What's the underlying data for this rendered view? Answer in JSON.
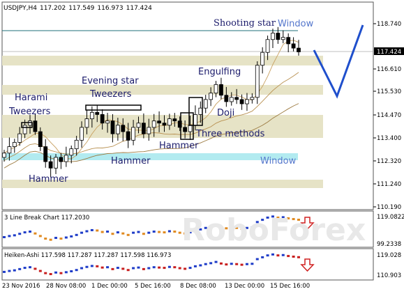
{
  "chart_data": [
    {
      "type": "candlestick",
      "symbol": "USDJPY,H4",
      "header_values": [
        "117.202",
        "117.549",
        "116.973",
        "117.424"
      ],
      "current_price": "117.424",
      "ylim": [
        110.19,
        119.5
      ],
      "y_ticks": [
        "118.740",
        "117.424",
        "116.610",
        "115.530",
        "114.470",
        "113.400",
        "112.320",
        "111.240",
        "110.190"
      ],
      "x_ticks": [
        "23 Nov 2016",
        "28 Nov 08:00",
        "1 Dec 00:00",
        "5 Dec 16:00",
        "8 Dec 08:00",
        "13 Dec 00:00",
        "15 Dec 16:00"
      ],
      "closes": [
        112.7,
        113.0,
        113.2,
        113.6,
        114.0,
        114.2,
        113.7,
        113.0,
        112.3,
        112.0,
        112.5,
        112.3,
        112.6,
        112.9,
        113.3,
        113.9,
        114.3,
        114.6,
        114.5,
        114.1,
        114.2,
        113.6,
        114.0,
        113.7,
        113.3,
        113.9,
        114.1,
        113.6,
        113.9,
        114.2,
        114.1,
        114.0,
        114.3,
        114.2,
        113.9,
        113.7,
        114.0,
        114.5,
        114.8,
        115.2,
        115.5,
        115.9,
        115.4,
        115.1,
        115.3,
        115.2,
        115.0,
        115.2,
        115.3,
        116.8,
        117.4,
        118.0,
        118.3,
        118.0,
        118.1,
        117.8,
        117.6,
        117.424
      ],
      "annotations": [
        "Shooting star",
        "Window",
        "Harami",
        "Tweezers",
        "Evening star",
        "Tweezers",
        "Engulfing",
        "Doji",
        "Three methods",
        "Hammer",
        "Hammer",
        "Hammer",
        "Window"
      ]
    },
    {
      "type": "line-break",
      "title": "3 Line Break Chart 117.2030",
      "y_ticks": [
        "119.0822",
        "99.2338"
      ],
      "values": [
        117.203
      ]
    },
    {
      "type": "heikin-ashi",
      "title": "Heiken-Ashi 117.598 117.287 117.287 117.598 116.973",
      "y_ticks": [
        "119.028",
        "110.903"
      ]
    }
  ],
  "watermark": "RoboForex",
  "colors": {
    "resistance_zone": "#e6e3c6",
    "window_band": "#b2ebf0",
    "blue_line": "#1f4fcc",
    "annotation_text": "#1b1b6b",
    "window_text": "#5577cc",
    "bull": "#1e3cc8",
    "bear": "#c81e1e",
    "arrow": "#d02020",
    "ma": "#bb9955"
  }
}
